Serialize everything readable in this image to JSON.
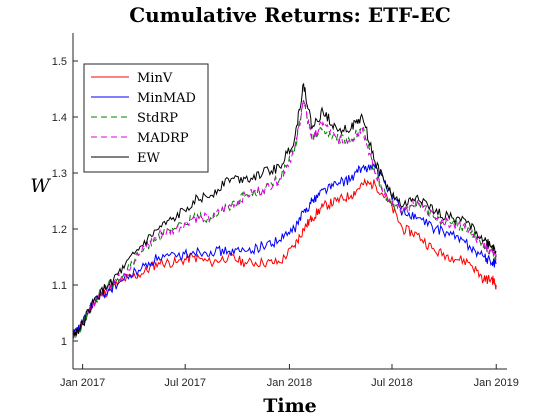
{
  "chart_data": {
    "type": "line",
    "title": "Cumulative Returns: ETF-EC",
    "xlabel": "Time",
    "ylabel": "W",
    "xlim": [
      "2016-12-15",
      "2019-01-20"
    ],
    "ylim": [
      0.95,
      1.55
    ],
    "x_ticks": [
      {
        "date": "2017-01-01",
        "label": "Jan 2017"
      },
      {
        "date": "2017-07-01",
        "label": "Jul 2017"
      },
      {
        "date": "2018-01-01",
        "label": "Jan 2018"
      },
      {
        "date": "2018-07-01",
        "label": "Jul 2018"
      },
      {
        "date": "2019-01-01",
        "label": "Jan 2019"
      }
    ],
    "y_ticks": [
      1,
      1.1,
      1.2,
      1.3,
      1.4,
      1.5
    ],
    "y_tick_labels": [
      "1",
      "1.1",
      "1.2",
      "1.3",
      "1.4",
      "1.5"
    ],
    "grid": false,
    "legend_position": "top-left",
    "x": [
      "2016-12-15",
      "2017-01-01",
      "2017-01-20",
      "2017-02-15",
      "2017-03-15",
      "2017-04-15",
      "2017-05-15",
      "2017-06-15",
      "2017-07-15",
      "2017-08-15",
      "2017-09-15",
      "2017-10-15",
      "2017-11-15",
      "2017-12-15",
      "2018-01-10",
      "2018-01-26",
      "2018-02-10",
      "2018-03-01",
      "2018-03-25",
      "2018-04-20",
      "2018-05-10",
      "2018-06-01",
      "2018-06-25",
      "2018-07-20",
      "2018-08-15",
      "2018-09-15",
      "2018-10-15",
      "2018-11-15",
      "2018-12-10",
      "2018-12-25",
      "2019-01-01"
    ],
    "series": [
      {
        "name": "MinV",
        "color": "#ff0000",
        "dash": "solid",
        "values": [
          1.01,
          1.03,
          1.07,
          1.09,
          1.11,
          1.12,
          1.14,
          1.14,
          1.15,
          1.14,
          1.15,
          1.14,
          1.14,
          1.14,
          1.17,
          1.2,
          1.22,
          1.24,
          1.25,
          1.26,
          1.28,
          1.28,
          1.25,
          1.2,
          1.19,
          1.16,
          1.15,
          1.14,
          1.11,
          1.11,
          1.1
        ]
      },
      {
        "name": "MinMAD",
        "color": "#0000ff",
        "dash": "solid",
        "values": [
          1.01,
          1.03,
          1.07,
          1.09,
          1.11,
          1.13,
          1.15,
          1.15,
          1.16,
          1.16,
          1.16,
          1.16,
          1.17,
          1.18,
          1.2,
          1.23,
          1.25,
          1.27,
          1.28,
          1.29,
          1.31,
          1.31,
          1.27,
          1.23,
          1.22,
          1.2,
          1.19,
          1.17,
          1.15,
          1.14,
          1.14
        ]
      },
      {
        "name": "StdRP",
        "color": "#008000",
        "dash": "dashed",
        "values": [
          1.01,
          1.03,
          1.07,
          1.1,
          1.12,
          1.16,
          1.19,
          1.2,
          1.22,
          1.22,
          1.24,
          1.26,
          1.27,
          1.29,
          1.34,
          1.43,
          1.36,
          1.38,
          1.36,
          1.36,
          1.38,
          1.3,
          1.25,
          1.23,
          1.25,
          1.22,
          1.21,
          1.2,
          1.17,
          1.16,
          1.15
        ]
      },
      {
        "name": "MADRP",
        "color": "#e000e0",
        "dash": "dashed",
        "values": [
          1.01,
          1.03,
          1.07,
          1.1,
          1.12,
          1.16,
          1.19,
          1.2,
          1.22,
          1.22,
          1.24,
          1.26,
          1.27,
          1.29,
          1.34,
          1.43,
          1.36,
          1.39,
          1.36,
          1.36,
          1.38,
          1.3,
          1.25,
          1.23,
          1.25,
          1.22,
          1.21,
          1.2,
          1.17,
          1.16,
          1.15
        ]
      },
      {
        "name": "EW",
        "color": "#000000",
        "dash": "solid",
        "values": [
          1.01,
          1.03,
          1.07,
          1.1,
          1.13,
          1.17,
          1.2,
          1.22,
          1.25,
          1.26,
          1.29,
          1.29,
          1.3,
          1.31,
          1.36,
          1.46,
          1.38,
          1.41,
          1.38,
          1.38,
          1.4,
          1.32,
          1.27,
          1.24,
          1.26,
          1.23,
          1.22,
          1.21,
          1.18,
          1.17,
          1.16
        ]
      }
    ]
  }
}
